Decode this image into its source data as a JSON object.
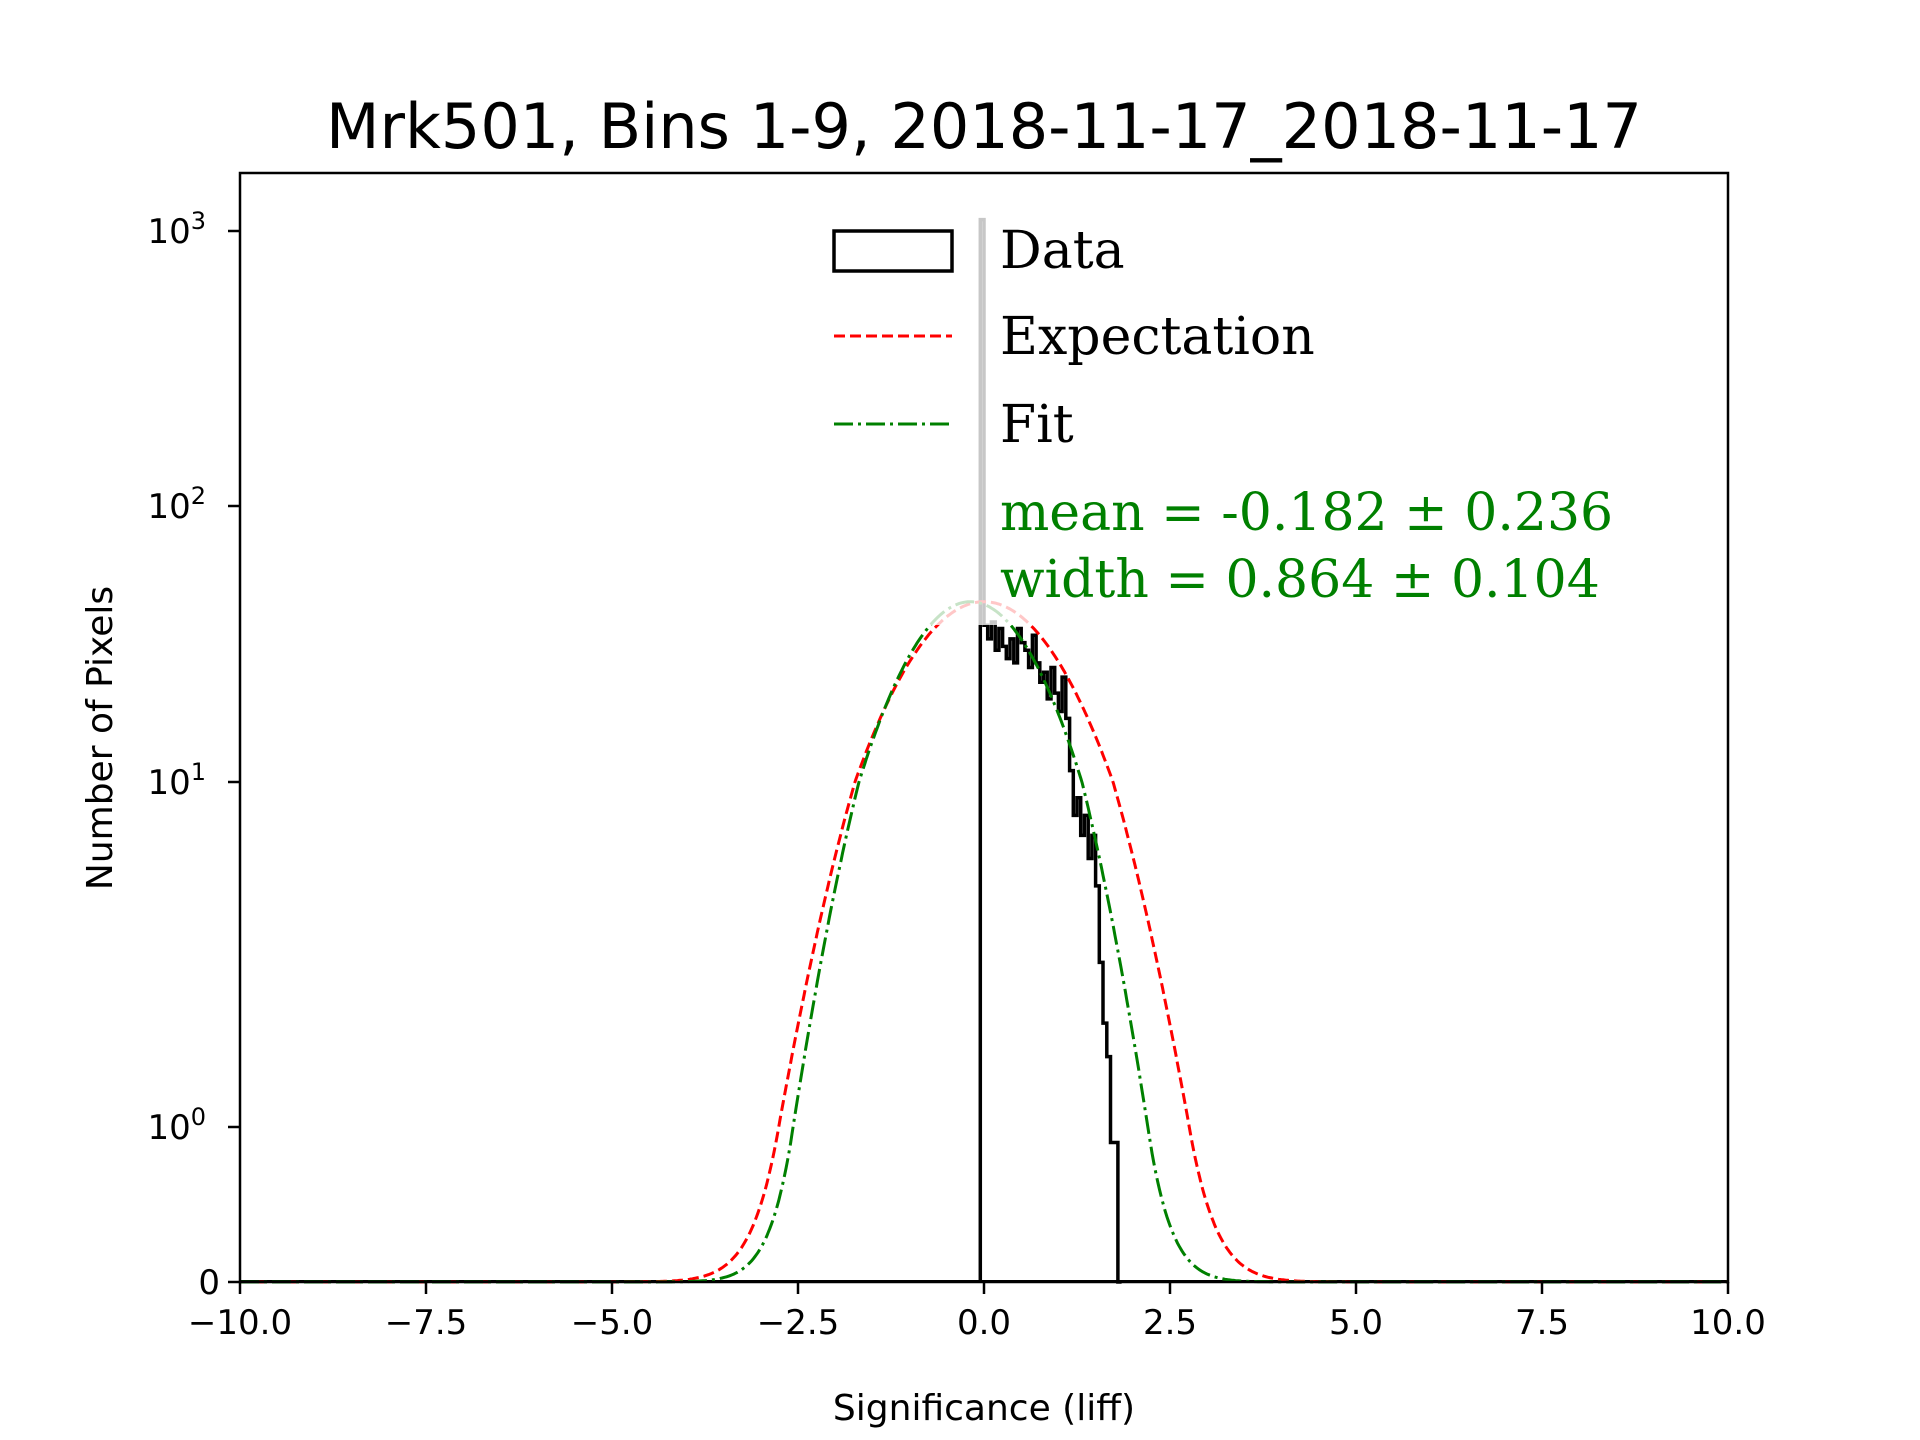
{
  "chart_data": {
    "type": "histogram",
    "title": "Mrk501, Bins 1-9, 2018-11-17_2018-11-17",
    "xlabel": "Significance (liff)",
    "ylabel": "Number of Pixels",
    "xlim": [
      -10,
      10
    ],
    "ylim": [
      0,
      1500
    ],
    "yscale": "symlog",
    "xticks": [
      -10,
      -7.5,
      -5,
      -2.5,
      0,
      2.5,
      5,
      7.5,
      10
    ],
    "xtick_labels": [
      "−10.0",
      "−7.5",
      "−5.0",
      "−2.5",
      "0.0",
      "2.5",
      "5.0",
      "7.5",
      "10.0"
    ],
    "yticks": [
      0,
      1,
      10,
      100,
      1000
    ],
    "ytick_labels": [
      {
        "base": "0",
        "exp": ""
      },
      {
        "base": "10",
        "exp": "0"
      },
      {
        "base": "10",
        "exp": "1"
      },
      {
        "base": "10",
        "exp": "2"
      },
      {
        "base": "10",
        "exp": "3"
      }
    ],
    "grid": false,
    "legend_placement": "top-center",
    "series": [
      {
        "name": "Data",
        "kind": "step-histogram",
        "color": "#000000",
        "bin_edges": [
          -0.05,
          0.0,
          0.05,
          0.1,
          0.15,
          0.2,
          0.25,
          0.3,
          0.35,
          0.4,
          0.45,
          0.5,
          0.55,
          0.6,
          0.65,
          0.7,
          0.75,
          0.8,
          0.85,
          0.9,
          0.95,
          1.0,
          1.05,
          1.1,
          1.15,
          1.2,
          1.25,
          1.3,
          1.35,
          1.4,
          1.45,
          1.5,
          1.55,
          1.6,
          1.65,
          1.7,
          1.75,
          1.8,
          1.85
        ],
        "values": [
          1100,
          37,
          33,
          38,
          30,
          36,
          31,
          28,
          33,
          27,
          36,
          32,
          30,
          26,
          34,
          27,
          23,
          25,
          20,
          26,
          21,
          18,
          24,
          17,
          11,
          8,
          9,
          7,
          8,
          6,
          7,
          5,
          3,
          2,
          1.6,
          0.9,
          0.9,
          0
        ]
      },
      {
        "name": "Expectation",
        "kind": "gaussian",
        "color": "#ff0000",
        "style": "dashed",
        "amplitude": 45,
        "mean": 0.0,
        "sigma": 1.0
      },
      {
        "name": "Fit",
        "kind": "gaussian",
        "color": "#008000",
        "style": "dashdot",
        "amplitude": 45,
        "mean": -0.182,
        "sigma": 0.864
      }
    ],
    "legend": [
      {
        "label": "Data",
        "type": "box",
        "color": "#000000"
      },
      {
        "label": "Expectation",
        "type": "dashed",
        "color": "#ff0000"
      },
      {
        "label": "Fit",
        "type": "dashdot",
        "color": "#008000"
      }
    ],
    "annotations": [
      {
        "text": "mean = -0.182 ± 0.236",
        "color": "#008000"
      },
      {
        "text": "width = 0.864 ± 0.104",
        "color": "#008000"
      }
    ]
  }
}
